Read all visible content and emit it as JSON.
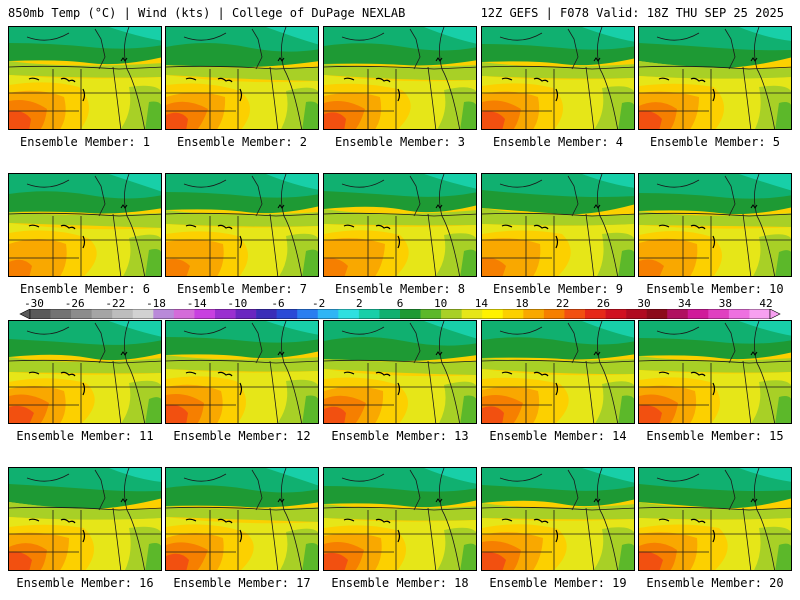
{
  "header": {
    "left": "850mb Temp (°C) | Wind (kts) | College of DuPage NEXLAB",
    "right": "12Z GEFS | F078 Valid: 18Z THU SEP 25 2025"
  },
  "panels": [
    {
      "label": "Ensemble Member: 1"
    },
    {
      "label": "Ensemble Member: 2"
    },
    {
      "label": "Ensemble Member: 3"
    },
    {
      "label": "Ensemble Member: 4"
    },
    {
      "label": "Ensemble Member: 5"
    },
    {
      "label": "Ensemble Member: 6"
    },
    {
      "label": "Ensemble Member: 7"
    },
    {
      "label": "Ensemble Member: 8"
    },
    {
      "label": "Ensemble Member: 9"
    },
    {
      "label": "Ensemble Member: 10"
    },
    {
      "label": "Ensemble Member: 11"
    },
    {
      "label": "Ensemble Member: 12"
    },
    {
      "label": "Ensemble Member: 13"
    },
    {
      "label": "Ensemble Member: 14"
    },
    {
      "label": "Ensemble Member: 15"
    },
    {
      "label": "Ensemble Member: 16"
    },
    {
      "label": "Ensemble Member: 17"
    },
    {
      "label": "Ensemble Member: 18"
    },
    {
      "label": "Ensemble Member: 19"
    },
    {
      "label": "Ensemble Member: 20"
    }
  ],
  "colorbar": {
    "ticks": [
      "-30",
      "-26",
      "-22",
      "-18",
      "-14",
      "-10",
      "-6",
      "-2",
      "2",
      "6",
      "10",
      "14",
      "18",
      "22",
      "26",
      "30",
      "34",
      "38",
      "42"
    ],
    "colors": [
      "#5a5a5a",
      "#737373",
      "#8c8c8c",
      "#a5a5a5",
      "#bdbdbd",
      "#d2d2d2",
      "#b98ad9",
      "#d46cd9",
      "#c840e0",
      "#9a2fd0",
      "#6a26c0",
      "#3a2db8",
      "#2a4ad6",
      "#2a7ef0",
      "#30b5f5",
      "#2ee0e0",
      "#18cfa8",
      "#10b070",
      "#1e9a34",
      "#5cb82a",
      "#a8d026",
      "#e6e618",
      "#fff200",
      "#fcd000",
      "#f9a800",
      "#f67f00",
      "#f25010",
      "#e62818",
      "#d01020",
      "#b00a20",
      "#8c0a1a",
      "#b01060",
      "#d01a9a",
      "#e040c0",
      "#ee70e0",
      "#f7a0f0"
    ]
  }
}
